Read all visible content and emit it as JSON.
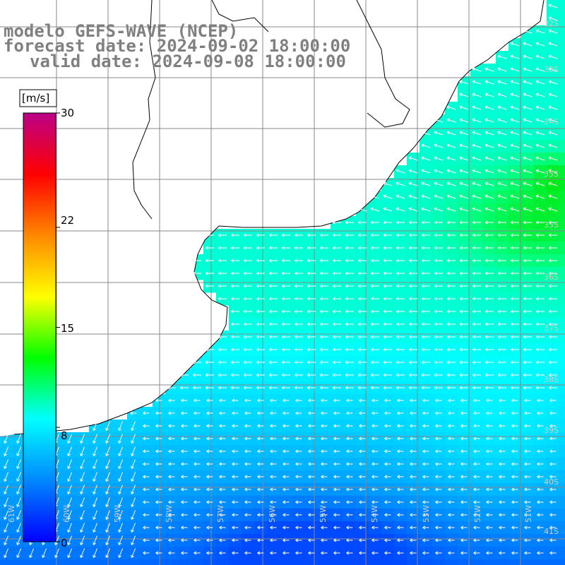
{
  "title": {
    "line1": "modelo GEFS-WAVE (NCEP)",
    "line2": "forecast date: 2024-09-02 18:00:00",
    "line3": "valid date: 2024-09-08 18:00:00"
  },
  "colorbar": {
    "unit": "[m/s]",
    "ticks": [
      "30",
      "22",
      "15",
      "8",
      "0"
    ],
    "tick_values": [
      30,
      22,
      15,
      8,
      0
    ],
    "range": [
      0,
      30
    ],
    "colors": [
      "#0000ff",
      "#0088ff",
      "#00ffff",
      "#00ff00",
      "#ffff00",
      "#ff8800",
      "#ff0000",
      "#bb0088"
    ]
  },
  "lat_labels": [
    "32S",
    "33S",
    "34S",
    "35S",
    "36S",
    "37S",
    "38S",
    "39S",
    "40S",
    "41S"
  ],
  "lon_labels": [
    "61W",
    "60W",
    "59W",
    "58W",
    "57W",
    "56W",
    "55W",
    "54W",
    "53W",
    "52W",
    "51W"
  ],
  "map": {
    "land_color": "#ffffff",
    "coast_color": "#000000",
    "grid_color": "#888888",
    "arrow_color": "#ffffff",
    "dominant_wind_direction": "from east (arrows point west); southwest corner arrows point south-southwest"
  }
}
